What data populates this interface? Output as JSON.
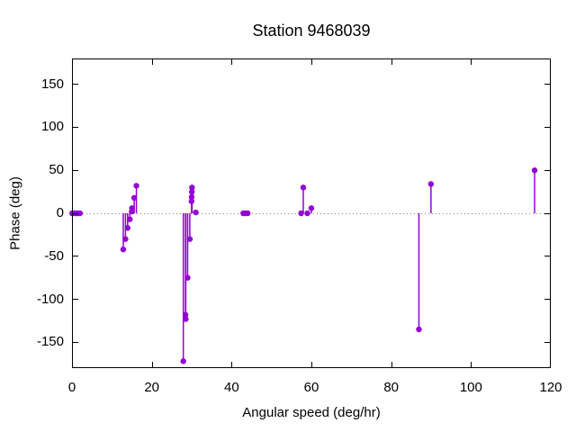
{
  "window": {
    "background": "#ffffff"
  },
  "colors": {
    "series": "#9400d3",
    "zero_line": "#808080",
    "border": "#000000",
    "text": "#000000",
    "background": "#ffffff"
  },
  "chart_data": {
    "type": "scatter",
    "style": "gnuplot impulses (vertical stems from y=0) with filled-circle points",
    "title": "Station 9468039",
    "xlabel": "Angular speed (deg/hr)",
    "ylabel": "Phase (deg)",
    "xlim": [
      0,
      120
    ],
    "ylim": [
      -180,
      180
    ],
    "xticks": [
      0,
      20,
      40,
      60,
      80,
      100,
      120
    ],
    "yticks": [
      -150,
      -100,
      -50,
      0,
      50,
      100,
      150
    ],
    "grid": false,
    "legend": "none",
    "zero_line_y": 0,
    "series_color": "#9400d3",
    "marker": "filled-circle",
    "points": [
      [
        0.04,
        0
      ],
      [
        0.54,
        0
      ],
      [
        1.02,
        0
      ],
      [
        1.5,
        0
      ],
      [
        2.0,
        0
      ],
      [
        12.85,
        -42
      ],
      [
        13.4,
        -30
      ],
      [
        13.94,
        -17
      ],
      [
        14.49,
        -7
      ],
      [
        14.96,
        2
      ],
      [
        15.04,
        6
      ],
      [
        15.59,
        18
      ],
      [
        16.14,
        32
      ],
      [
        27.9,
        -172
      ],
      [
        28.44,
        -118
      ],
      [
        28.51,
        -123
      ],
      [
        28.98,
        -75
      ],
      [
        29.53,
        -30
      ],
      [
        29.96,
        14
      ],
      [
        30.0,
        19
      ],
      [
        30.04,
        25
      ],
      [
        30.08,
        30
      ],
      [
        31.02,
        1
      ],
      [
        42.93,
        0
      ],
      [
        43.48,
        0
      ],
      [
        44.03,
        0
      ],
      [
        57.42,
        0
      ],
      [
        57.97,
        30
      ],
      [
        58.98,
        0
      ],
      [
        60.0,
        6
      ],
      [
        86.95,
        -135
      ],
      [
        89.97,
        34
      ],
      [
        115.94,
        50
      ]
    ]
  }
}
